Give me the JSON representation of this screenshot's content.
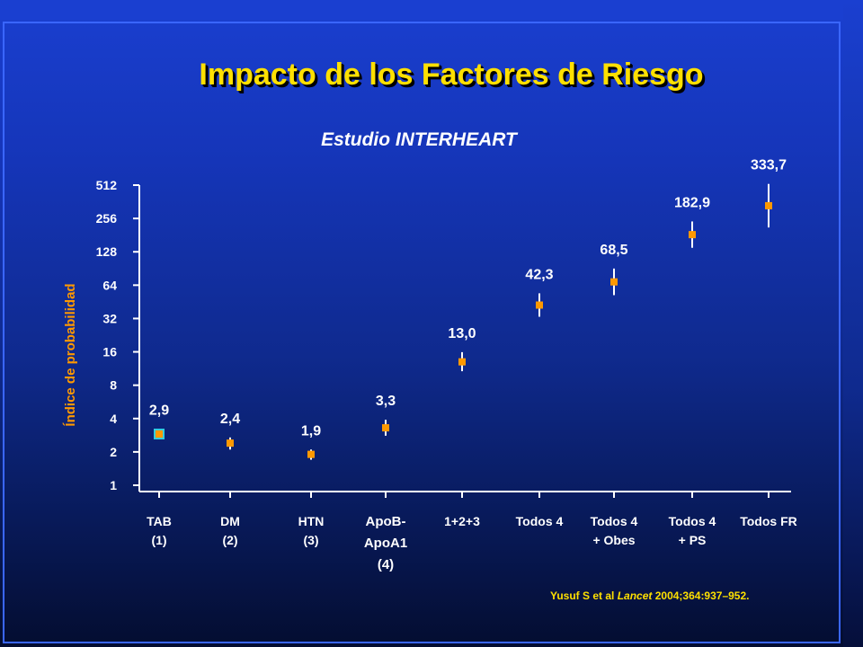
{
  "title": "Impacto de los Factores de Riesgo",
  "subtitle": "Estudio INTERHEART",
  "citation": {
    "pre": "Yusuf S et al ",
    "journal": "Lancet",
    "post": " 2004;364:937–952."
  },
  "colors": {
    "title": "#ffe000",
    "marker": "#ff9900",
    "first_marker": "#33ccdd",
    "axis": "#ffffff",
    "ylabel": "#ff9900"
  },
  "chart_data": {
    "type": "scatter",
    "title": "Estudio INTERHEART",
    "ylabel": "Índice de probabilidad",
    "yscale": "log2",
    "ylim": [
      1,
      512
    ],
    "yticks": [
      1,
      2,
      4,
      8,
      16,
      32,
      64,
      128,
      256,
      512
    ],
    "ytick_labels": [
      "1",
      "2",
      "4",
      "8",
      "16",
      "32",
      "64",
      "128",
      "256",
      "512"
    ],
    "categories": [
      [
        "TAB",
        "(1)"
      ],
      [
        "DM",
        "(2)"
      ],
      [
        "HTN",
        "(3)"
      ],
      [
        "ApoB-",
        "ApoA1",
        "(4)"
      ],
      [
        "1+2+3"
      ],
      [
        "Todos 4"
      ],
      [
        "Todos 4",
        "+ Obes"
      ],
      [
        "Todos 4",
        "+ PS"
      ],
      [
        "Todos FR"
      ]
    ],
    "values": [
      2.9,
      2.4,
      1.9,
      3.3,
      13.0,
      42.3,
      68.5,
      182.9,
      333.7
    ],
    "value_labels": [
      "2,9",
      "2,4",
      "1,9",
      "3,3",
      "13,0",
      "42,3",
      "68,5",
      "182,9",
      "333,7"
    ],
    "ci_low": [
      2.6,
      2.1,
      1.7,
      2.8,
      10.7,
      33.2,
      52.0,
      139.2,
      212.3
    ],
    "ci_high": [
      3.2,
      2.7,
      2.1,
      3.9,
      15.9,
      54.0,
      90.4,
      240.5,
      524.6
    ]
  }
}
